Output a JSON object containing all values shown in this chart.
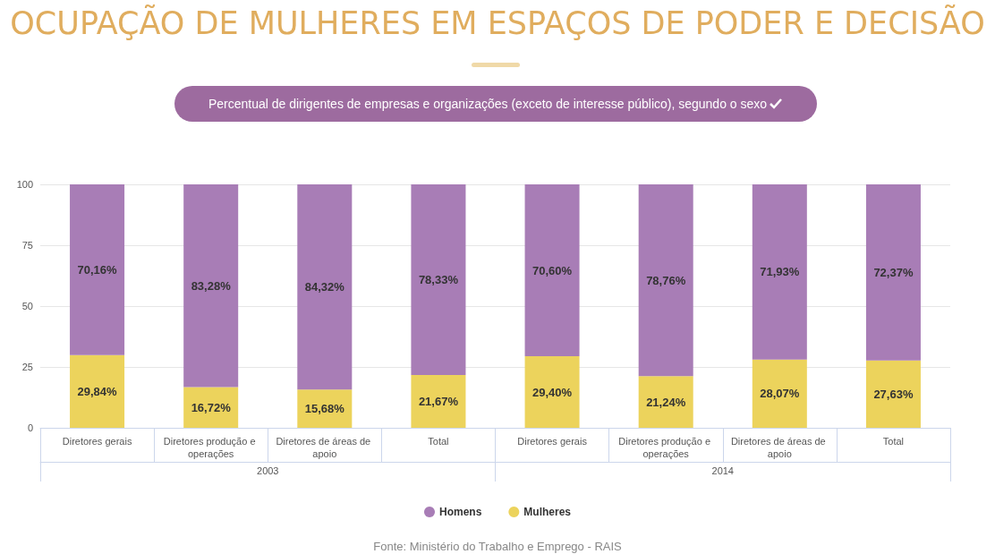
{
  "chart_data": {
    "type": "bar",
    "title": "OCUPAÇÃO DE MULHERES EM ESPAÇOS DE PODER E DECISÃO",
    "subtitle": "Percentual de dirigentes de empresas e organizações (exceto de interesse público), segundo o sexo",
    "categories": [
      "Diretores gerais",
      "Diretores produção e operações",
      "Diretores de áreas de apoio",
      "Total",
      "Diretores gerais",
      "Diretores produção e operações",
      "Diretores de áreas de apoio",
      "Total"
    ],
    "stacked": true,
    "series": [
      {
        "name": "Mulheres",
        "color": "#ecd35c",
        "values": [
          29.84,
          16.72,
          15.68,
          21.67,
          29.4,
          21.24,
          28.07,
          27.63
        ],
        "value_labels": [
          "29,84%",
          "16,72%",
          "15,68%",
          "21,67%",
          "29,40%",
          "21,24%",
          "28,07%",
          "27,63%"
        ]
      },
      {
        "name": "Homens",
        "color": "#a87db6",
        "values": [
          70.16,
          83.28,
          84.32,
          78.33,
          70.6,
          78.76,
          71.93,
          72.37
        ],
        "value_labels": [
          "70,16%",
          "83,28%",
          "84,32%",
          "78,33%",
          "70,60%",
          "78,76%",
          "71,93%",
          "72,37%"
        ]
      }
    ],
    "ylim": [
      0,
      100
    ],
    "yticks": [
      0,
      25,
      50,
      75,
      100
    ],
    "grid": "y",
    "legend": "bottom",
    "annotations": [
      "2003",
      "2014",
      "Fonte: Ministério do Trabalho e Emprego - RAIS"
    ]
  }
}
